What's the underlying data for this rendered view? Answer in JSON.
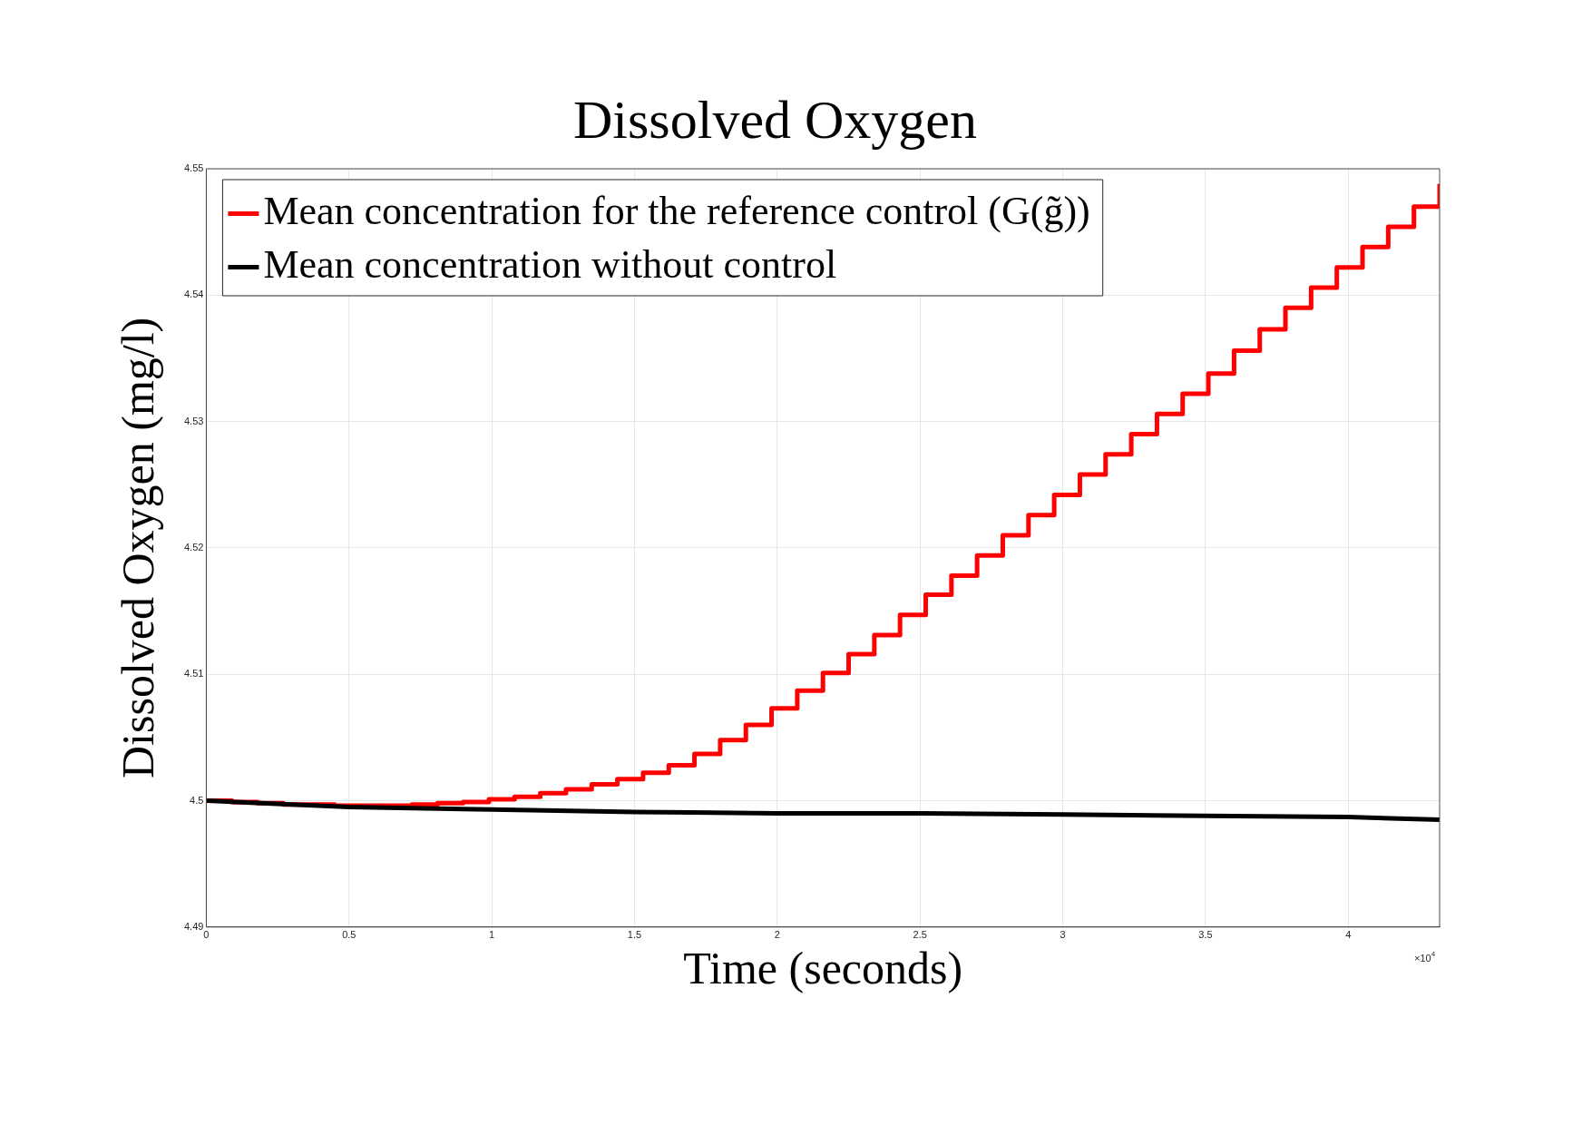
{
  "chart_data": {
    "type": "step",
    "title": "Dissolved Oxygen",
    "xlabel": "Time (seconds)",
    "ylabel": "Dissolved Oxygen (mg/l)",
    "xlim": [
      0,
      4.32
    ],
    "ylim": [
      4.49,
      4.55
    ],
    "xticks": [
      0,
      0.5,
      1,
      1.5,
      2,
      2.5,
      3,
      3.5,
      4
    ],
    "yticks": [
      4.49,
      4.5,
      4.51,
      4.52,
      4.53,
      4.54,
      4.55
    ],
    "grid": true,
    "legend": "top left",
    "line_style": "solid",
    "marker": "none",
    "annotations": [
      "×10$^{4}$"
    ],
    "series": [
      {
        "name": "Mean concentration for the reference control (G(g̃))",
        "color": "#ff0000",
        "type": "step",
        "x": [
          0,
          0.09,
          0.18,
          0.27,
          0.36,
          0.45,
          0.54,
          0.63,
          0.72,
          0.81,
          0.9,
          0.99,
          1.08,
          1.17,
          1.26,
          1.35,
          1.44,
          1.53,
          1.62,
          1.71,
          1.8,
          1.89,
          1.98,
          2.07,
          2.16,
          2.25,
          2.34,
          2.43,
          2.52,
          2.61,
          2.7,
          2.79,
          2.88,
          2.97,
          3.06,
          3.15,
          3.24,
          3.33,
          3.42,
          3.51,
          3.6,
          3.69,
          3.78,
          3.87,
          3.96,
          4.05,
          4.14,
          4.23,
          4.32
        ],
        "values": [
          4.5,
          4.4999,
          4.4998,
          4.4997,
          4.4997,
          4.4996,
          4.4996,
          4.4996,
          4.4997,
          4.4998,
          4.4999,
          4.5001,
          4.5003,
          4.5006,
          4.5009,
          4.5013,
          4.5017,
          4.5022,
          4.5028,
          4.5037,
          4.5048,
          4.506,
          4.5073,
          4.5087,
          4.5101,
          4.5116,
          4.5131,
          4.5147,
          4.5163,
          4.5178,
          4.5194,
          4.521,
          4.5226,
          4.5242,
          4.5258,
          4.5274,
          4.529,
          4.5306,
          4.5322,
          4.5338,
          4.5356,
          4.5373,
          4.539,
          4.5406,
          4.5422,
          4.5438,
          4.5454,
          4.547,
          4.5488
        ]
      },
      {
        "name": "Mean concentration without control",
        "color": "#000000",
        "type": "line",
        "x": [
          0,
          0.5,
          1,
          1.5,
          2,
          2.5,
          3,
          3.5,
          4,
          4.32
        ],
        "values": [
          4.5,
          4.4995,
          4.4993,
          4.4991,
          4.499,
          4.499,
          4.4989,
          4.4988,
          4.4987,
          4.4985
        ]
      }
    ]
  }
}
